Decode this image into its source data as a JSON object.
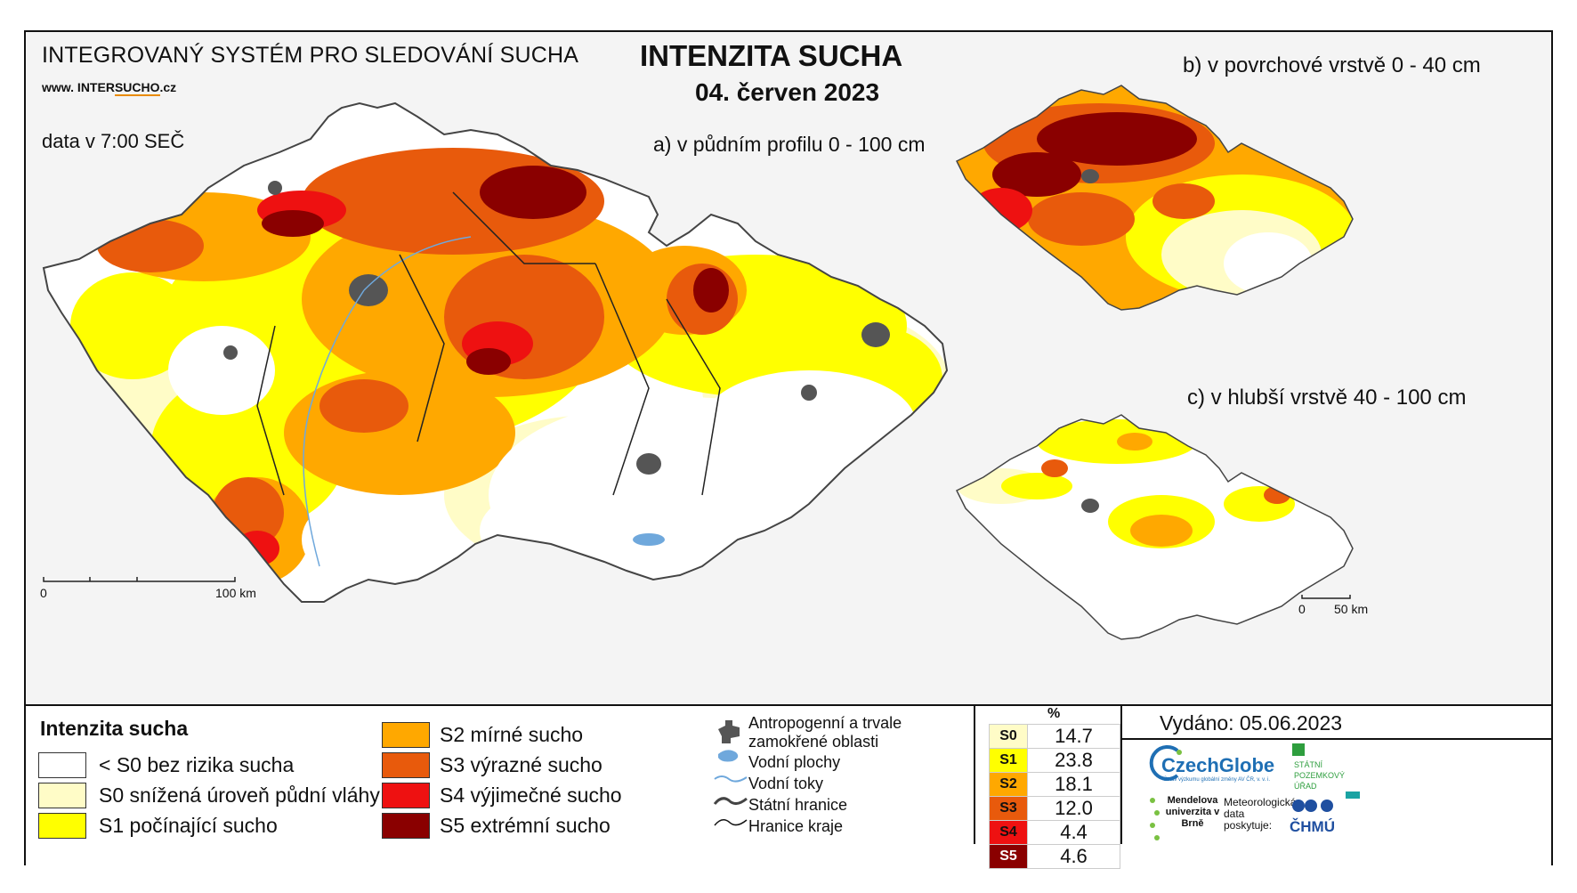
{
  "header": {
    "system_title": "INTEGROVANÝ SYSTÉM PRO SLEDOVÁNÍ SUCHA",
    "website_prefix": "www. INTER",
    "website_highlight": "SUCHO",
    "website_suffix": ".cz",
    "data_time": "data v 7:00 SEČ",
    "main_title": "INTENZITA SUCHA",
    "date": "04. červen 2023"
  },
  "maps": {
    "a_title": "a) v půdním profilu 0 - 100 cm",
    "b_title": "b) v povrchové vrstvě 0 - 40 cm",
    "c_title": "c) v hlubší vrstvě 40 - 100 cm",
    "scale_a": {
      "start": "0",
      "end": "100 km"
    },
    "scale_c": {
      "start": "0",
      "end": "50 km"
    }
  },
  "legend": {
    "title": "Intenzita sucha",
    "classes": [
      {
        "label": "< S0 bez rizika sucha",
        "color": "#ffffff"
      },
      {
        "label": "S0 snížená úroveň půdní vláhy",
        "color": "#fffcc7"
      },
      {
        "label": "S1 počínající sucho",
        "color": "#ffff00"
      },
      {
        "label": "S2 mírné sucho",
        "color": "#ffa800"
      },
      {
        "label": "S3 výrazné sucho",
        "color": "#e85a0c"
      },
      {
        "label": "S4 výjimečné sucho",
        "color": "#ee1111"
      },
      {
        "label": "S5 extrémní sucho",
        "color": "#8a0000"
      }
    ],
    "overlays": [
      {
        "label": "Antropogenní a trvale zamokřené oblasti",
        "icon": "urban-area-icon"
      },
      {
        "label": "Vodní plochy",
        "icon": "water-body-icon"
      },
      {
        "label": "Vodní toky",
        "icon": "river-icon"
      },
      {
        "label": "Státní hranice",
        "icon": "state-border-icon"
      },
      {
        "label": "Hranice kraje",
        "icon": "region-border-icon"
      }
    ]
  },
  "percent_table": {
    "header": "%",
    "rows": [
      {
        "class": "S0",
        "value": "14.7",
        "color": "#fffcc7"
      },
      {
        "class": "S1",
        "value": "23.8",
        "color": "#ffff00"
      },
      {
        "class": "S2",
        "value": "18.1",
        "color": "#ffa800"
      },
      {
        "class": "S3",
        "value": "12.0",
        "color": "#e85a0c"
      },
      {
        "class": "S4",
        "value": "4.4",
        "color": "#ee1111"
      },
      {
        "class": "S5",
        "value": "4.6",
        "color": "#8a0000"
      }
    ]
  },
  "footer": {
    "issued": "Vydáno: 05.06.2023",
    "logo_czechglobe": "CzechGlobe",
    "logo_czechglobe_sub": "Ústav výzkumu globální změny AV ČR, v. v. i.",
    "logo_spu": "STÁTNÍ POZEMKOVÝ ÚŘAD",
    "logo_mendel": "Mendelova univerzita v Brně",
    "meteo_text": "Meteorologická data poskytuje:",
    "logo_chmu": "ČHMÚ"
  }
}
